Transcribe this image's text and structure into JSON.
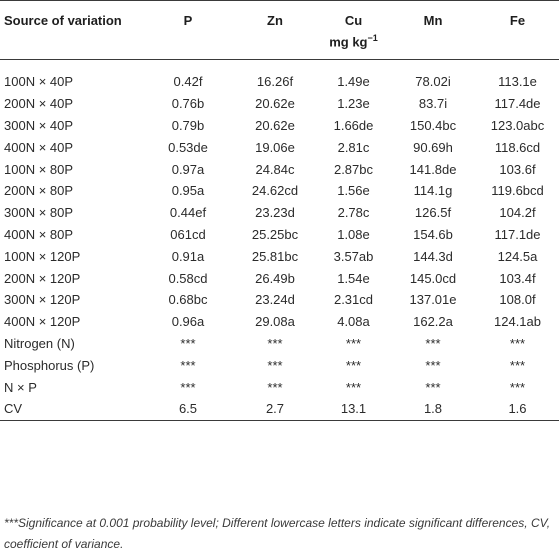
{
  "table": {
    "headers": [
      "Source of variation",
      "P",
      "Zn",
      "Cu",
      "Mn",
      "Fe"
    ],
    "unit": "mg kg",
    "unit_exp": "−1",
    "rows": [
      [
        "100N × 40P",
        "0.42f",
        "16.26f",
        "1.49e",
        "78.02i",
        "113.1e"
      ],
      [
        "200N × 40P",
        "0.76b",
        "20.62e",
        "1.23e",
        "83.7i",
        "117.4de"
      ],
      [
        "300N × 40P",
        "0.79b",
        "20.62e",
        "1.66de",
        "150.4bc",
        "123.0abc"
      ],
      [
        "400N × 40P",
        "0.53de",
        "19.06e",
        "2.81c",
        "90.69h",
        "118.6cd"
      ],
      [
        "100N × 80P",
        "0.97a",
        "24.84c",
        "2.87bc",
        "141.8de",
        "103.6f"
      ],
      [
        "200N × 80P",
        "0.95a",
        "24.62cd",
        "1.56e",
        "114.1g",
        "119.6bcd"
      ],
      [
        "300N × 80P",
        "0.44ef",
        "23.23d",
        "2.78c",
        "126.5f",
        "104.2f"
      ],
      [
        "400N × 80P",
        "061cd",
        "25.25bc",
        "1.08e",
        "154.6b",
        "117.1de"
      ],
      [
        "100N × 120P",
        "0.91a",
        "25.81bc",
        "3.57ab",
        "144.3d",
        "124.5a"
      ],
      [
        "200N × 120P",
        "0.58cd",
        "26.49b",
        "1.54e",
        "145.0cd",
        "103.4f"
      ],
      [
        "300N × 120P",
        "0.68bc",
        "23.24d",
        "2.31cd",
        "137.01e",
        "108.0f"
      ],
      [
        "400N × 120P",
        "0.96a",
        "29.08a",
        "4.08a",
        "162.2a",
        "124.1ab"
      ],
      [
        "Nitrogen (N)",
        "***",
        "***",
        "***",
        "***",
        "***"
      ],
      [
        "Phosphorus (P)",
        "***",
        "***",
        "***",
        "***",
        "***"
      ],
      [
        "N × P",
        "***",
        "***",
        "***",
        "***",
        "***"
      ],
      [
        "CV",
        "6.5",
        "2.7",
        "13.1",
        "1.8",
        "1.6"
      ]
    ]
  },
  "footnote": "***Significance at 0.001 probability level; Different lowercase letters indicate significant differences, CV, coefficient of variance."
}
